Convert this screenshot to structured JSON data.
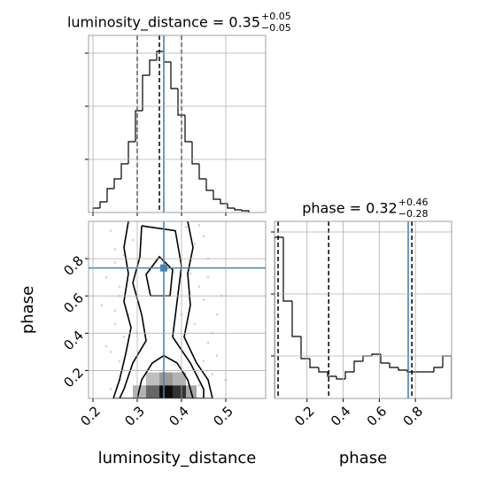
{
  "chart_data": [
    {
      "type": "histogram",
      "title": "luminosity_distance = 0.35",
      "title_upper": "+0.05",
      "title_lower": "−0.05",
      "bins": [
        0.2,
        0.216,
        0.232,
        0.248,
        0.264,
        0.28,
        0.296,
        0.312,
        0.328,
        0.344,
        0.36,
        0.376,
        0.392,
        0.408,
        0.424,
        0.44,
        0.456,
        0.472,
        0.488,
        0.504,
        0.52,
        0.536,
        0.552
      ],
      "values": [
        5,
        12,
        27,
        38,
        55,
        80,
        115,
        155,
        172,
        182,
        170,
        140,
        110,
        80,
        55,
        38,
        25,
        15,
        10,
        5,
        3,
        2
      ],
      "color": "#000000",
      "xlim": [
        0.19,
        0.59
      ],
      "xticks": [
        0.2,
        0.3,
        0.4,
        0.5
      ],
      "ylim": [
        0,
        200
      ],
      "yticks": [
        60,
        120,
        180
      ],
      "quantiles": [
        0.3,
        0.35,
        0.4
      ],
      "truth": 0.36,
      "truth_color": "#4682b4",
      "grid": true
    },
    {
      "type": "scatter",
      "xlabel": "luminosity_distance",
      "ylabel": "phase",
      "xlim": [
        0.19,
        0.59
      ],
      "xticks": [
        0.2,
        0.3,
        0.4,
        0.5
      ],
      "ylim": [
        0.05,
        1.0
      ],
      "yticks": [
        0.2,
        0.4,
        0.6,
        0.8
      ],
      "x": [
        0.24,
        0.25,
        0.23,
        0.26,
        0.45,
        0.46,
        0.44,
        0.48,
        0.25,
        0.47,
        0.24,
        0.43,
        0.27,
        0.45,
        0.26,
        0.44,
        0.22,
        0.49,
        0.25,
        0.46,
        0.28,
        0.42,
        0.27,
        0.43,
        0.24,
        0.47,
        0.26,
        0.45,
        0.29,
        0.41,
        0.23,
        0.48,
        0.25,
        0.44,
        0.27,
        0.46,
        0.3,
        0.4,
        0.26,
        0.5
      ],
      "y": [
        0.95,
        0.85,
        0.7,
        0.6,
        0.92,
        0.8,
        0.65,
        0.5,
        0.45,
        0.4,
        0.3,
        0.88,
        0.2,
        0.25,
        0.15,
        0.98,
        0.55,
        0.6,
        0.78,
        0.35,
        0.5,
        0.72,
        0.38,
        0.45,
        0.1,
        0.18,
        0.65,
        0.58,
        0.9,
        0.97,
        0.33,
        0.28,
        0.52,
        0.12,
        0.82,
        0.7,
        0.4,
        0.5,
        0.25,
        0.15
      ],
      "color": "#808080",
      "density": [
        {
          "x": [
            0.29,
            0.32
          ],
          "y": [
            0.05,
            0.12
          ],
          "level": 0.3
        },
        {
          "x": [
            0.32,
            0.35
          ],
          "y": [
            0.05,
            0.12
          ],
          "level": 0.6
        },
        {
          "x": [
            0.35,
            0.38
          ],
          "y": [
            0.05,
            0.12
          ],
          "level": 0.95
        },
        {
          "x": [
            0.38,
            0.41
          ],
          "y": [
            0.05,
            0.12
          ],
          "level": 0.8
        },
        {
          "x": [
            0.41,
            0.434
          ],
          "y": [
            0.05,
            0.12
          ],
          "level": 0.35
        },
        {
          "x": [
            0.32,
            0.35
          ],
          "y": [
            0.12,
            0.19
          ],
          "level": 0.25
        },
        {
          "x": [
            0.35,
            0.38
          ],
          "y": [
            0.12,
            0.19
          ],
          "level": 0.4
        },
        {
          "x": [
            0.38,
            0.41
          ],
          "y": [
            0.12,
            0.19
          ],
          "level": 0.3
        }
      ],
      "contours": [
        {
          "x": [
            0.28,
            0.27,
            0.28,
            0.27,
            0.286,
            0.274,
            0.26,
            0.246,
            0.47,
            0.46,
            0.434,
            0.406,
            0.42,
            0.414,
            0.426,
            0.414
          ],
          "y": [
            1.0,
            0.86,
            0.72,
            0.57,
            0.43,
            0.29,
            0.15,
            0.05,
            0.05,
            0.15,
            0.24,
            0.38,
            0.55,
            0.72,
            0.86,
            1.0
          ]
        },
        {
          "x": [
            0.31,
            0.306,
            0.29,
            0.31,
            0.32,
            0.29,
            0.27,
            0.26,
            0.45,
            0.45,
            0.42,
            0.38,
            0.39,
            0.4,
            0.386,
            0.31
          ],
          "y": [
            0.976,
            0.81,
            0.67,
            0.5,
            0.36,
            0.24,
            0.1,
            0.05,
            0.05,
            0.1,
            0.24,
            0.38,
            0.57,
            0.76,
            0.95,
            0.976
          ]
        },
        {
          "x": [
            0.3,
            0.31,
            0.334,
            0.36,
            0.39,
            0.414,
            0.426
          ],
          "y": [
            0.05,
            0.15,
            0.24,
            0.28,
            0.24,
            0.15,
            0.05
          ]
        },
        {
          "x": [
            0.33,
            0.32,
            0.35,
            0.38,
            0.374,
            0.33
          ],
          "y": [
            0.6,
            0.715,
            0.81,
            0.74,
            0.6,
            0.6
          ]
        }
      ],
      "contour_color": "#000000",
      "truth": [
        0.36,
        0.75
      ],
      "truth_color": "#4682b4",
      "grid": true
    },
    {
      "type": "histogram",
      "title": "phase = 0.32",
      "title_upper": "+0.46",
      "title_lower": "−0.28",
      "xlabel": "phase",
      "bins": [
        0.02,
        0.069,
        0.118,
        0.167,
        0.216,
        0.265,
        0.314,
        0.363,
        0.412,
        0.461,
        0.51,
        0.559,
        0.608,
        0.657,
        0.706,
        0.755,
        0.804,
        0.853,
        0.902,
        0.951,
        1.0
      ],
      "values": [
        182,
        110,
        70,
        45,
        35,
        30,
        25,
        22,
        30,
        42,
        48,
        50,
        40,
        35,
        32,
        30,
        30,
        30,
        35,
        48
      ],
      "color": "#000000",
      "xlim": [
        0.02,
        1.0
      ],
      "xticks": [
        0.2,
        0.4,
        0.6,
        0.8
      ],
      "ylim": [
        0,
        200
      ],
      "yticks": [
        48,
        118,
        188
      ],
      "quantiles": [
        0.04,
        0.32,
        0.78
      ],
      "truth": 0.76,
      "truth_color": "#4682b4",
      "grid": true
    }
  ]
}
